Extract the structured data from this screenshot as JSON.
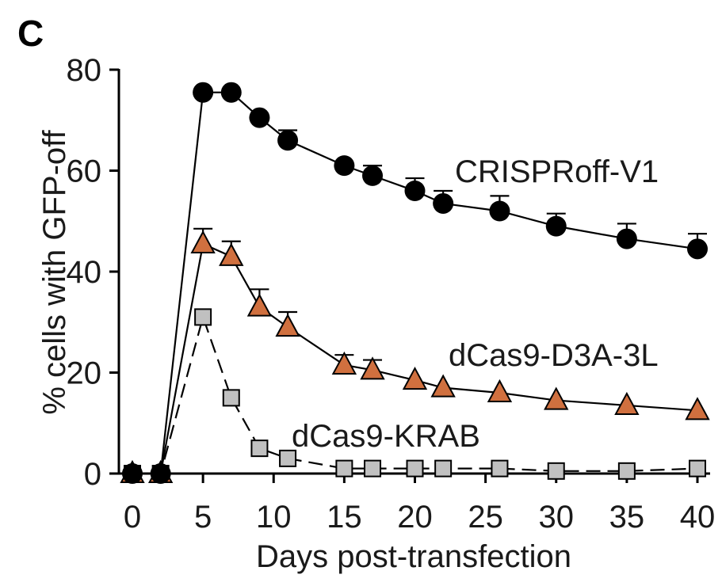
{
  "panel_label": "C",
  "chart_data": {
    "type": "line",
    "title": "",
    "xlabel": "Days post-transfection",
    "ylabel": "% cells with GFP-off",
    "xlim": [
      0,
      40
    ],
    "ylim": [
      0,
      80
    ],
    "x_ticks": [
      "0",
      "5",
      "10",
      "15",
      "20",
      "25",
      "30",
      "35",
      "40"
    ],
    "y_ticks": [
      "0",
      "20",
      "40",
      "60",
      "80"
    ],
    "grid": false,
    "series": [
      {
        "name": "CRISPRoff-V1",
        "marker": "circle",
        "line_style": "solid",
        "color": "#000000",
        "x": [
          0,
          2,
          5,
          7,
          9,
          11,
          15,
          17,
          20,
          22,
          26,
          30,
          35,
          40
        ],
        "y": [
          0,
          0,
          75.5,
          75.5,
          70.5,
          66,
          61,
          59,
          56,
          53.5,
          52,
          49,
          46.5,
          44.5
        ],
        "err": [
          0,
          0,
          0,
          0,
          0,
          2,
          0,
          2,
          2.5,
          2.5,
          3,
          2.5,
          3,
          3
        ]
      },
      {
        "name": "dCas9-D3A-3L",
        "marker": "triangle",
        "line_style": "solid",
        "color": "#d0703f",
        "x": [
          0,
          2,
          5,
          7,
          9,
          11,
          15,
          17,
          20,
          22,
          26,
          30,
          35,
          40
        ],
        "y": [
          0,
          0,
          45.5,
          43,
          33,
          29,
          21.5,
          20.5,
          18.5,
          17,
          16,
          14.5,
          13.5,
          12.5
        ],
        "err": [
          0,
          0,
          3,
          3,
          3.5,
          3,
          2,
          2,
          0,
          0,
          0,
          0,
          0,
          0
        ]
      },
      {
        "name": "dCas9-KRAB",
        "marker": "square",
        "line_style": "dashed",
        "color": "#c0c0c0",
        "x": [
          0,
          2,
          5,
          7,
          9,
          11,
          15,
          17,
          20,
          22,
          26,
          30,
          35,
          40
        ],
        "y": [
          0,
          0,
          31,
          15,
          5,
          3,
          1,
          1,
          1,
          1,
          1,
          0.5,
          0.5,
          1
        ],
        "err": [
          0,
          0,
          0,
          0,
          0,
          0,
          0,
          0,
          0,
          0,
          0,
          0,
          0,
          0
        ]
      }
    ],
    "series_labels": [
      "CRISPRoff-V1",
      "dCas9-D3A-3L",
      "dCas9-KRAB"
    ]
  }
}
